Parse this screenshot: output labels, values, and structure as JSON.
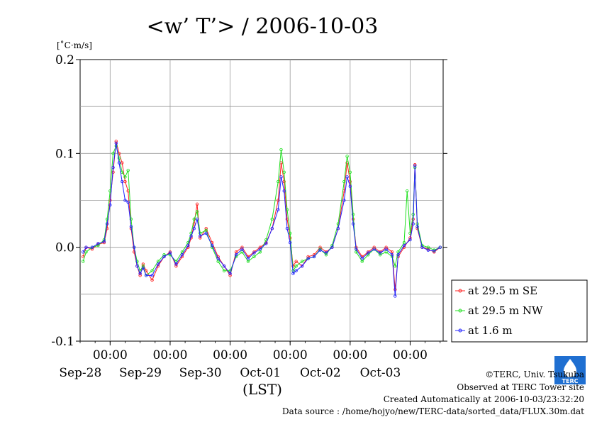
{
  "chart_data": {
    "type": "line",
    "title": "<w’ T’> / 2006-10-03",
    "unit_label": "[˚C·m/s]",
    "xlabel": "(LST)",
    "ylim": [
      -0.1,
      0.2
    ],
    "y_ticks": [
      "0.2",
      "0.1",
      "0.0",
      "-0.1"
    ],
    "x_range_days": [
      -0.5,
      5.55
    ],
    "x_day_ticks": [
      {
        "time": "00:00",
        "date": "Sep-28"
      },
      {
        "time": "00:00",
        "date": "Sep-29"
      },
      {
        "time": "00:00",
        "date": "Sep-30"
      },
      {
        "time": "00:00",
        "date": "Oct-01"
      },
      {
        "time": "00:00",
        "date": "Oct-02"
      },
      {
        "time": "00:00",
        "date": "Oct-03"
      }
    ],
    "grid": true,
    "legend_position": "right",
    "series": [
      {
        "name": "at 29.5 m SE",
        "color": "#ff2020",
        "points": [
          [
            -0.45,
            -0.01
          ],
          [
            -0.4,
            0.0
          ],
          [
            -0.3,
            -0.002
          ],
          [
            -0.2,
            0.003
          ],
          [
            -0.1,
            0.005
          ],
          [
            -0.05,
            0.02
          ],
          [
            0.0,
            0.05
          ],
          [
            0.05,
            0.08
          ],
          [
            0.1,
            0.113
          ],
          [
            0.15,
            0.1
          ],
          [
            0.2,
            0.09
          ],
          [
            0.25,
            0.07
          ],
          [
            0.3,
            0.06
          ],
          [
            0.35,
            0.02
          ],
          [
            0.4,
            -0.005
          ],
          [
            0.45,
            -0.02
          ],
          [
            0.5,
            -0.03
          ],
          [
            0.55,
            -0.018
          ],
          [
            0.6,
            -0.025
          ],
          [
            0.7,
            -0.035
          ],
          [
            0.8,
            -0.02
          ],
          [
            0.9,
            -0.01
          ],
          [
            1.0,
            -0.005
          ],
          [
            1.1,
            -0.02
          ],
          [
            1.2,
            -0.01
          ],
          [
            1.3,
            0.0
          ],
          [
            1.35,
            0.01
          ],
          [
            1.4,
            0.025
          ],
          [
            1.45,
            0.046
          ],
          [
            1.5,
            0.01
          ],
          [
            1.6,
            0.02
          ],
          [
            1.7,
            0.005
          ],
          [
            1.8,
            -0.01
          ],
          [
            1.9,
            -0.02
          ],
          [
            2.0,
            -0.03
          ],
          [
            2.1,
            -0.005
          ],
          [
            2.2,
            0.0
          ],
          [
            2.3,
            -0.01
          ],
          [
            2.4,
            -0.005
          ],
          [
            2.5,
            0.0
          ],
          [
            2.6,
            0.005
          ],
          [
            2.7,
            0.02
          ],
          [
            2.8,
            0.05
          ],
          [
            2.85,
            0.09
          ],
          [
            2.9,
            0.07
          ],
          [
            2.95,
            0.03
          ],
          [
            3.0,
            0.01
          ],
          [
            3.05,
            -0.02
          ],
          [
            3.1,
            -0.015
          ],
          [
            3.2,
            -0.02
          ],
          [
            3.3,
            -0.01
          ],
          [
            3.4,
            -0.008
          ],
          [
            3.5,
            0.0
          ],
          [
            3.6,
            -0.005
          ],
          [
            3.7,
            0.0
          ],
          [
            3.8,
            0.02
          ],
          [
            3.9,
            0.06
          ],
          [
            3.95,
            0.09
          ],
          [
            4.0,
            0.07
          ],
          [
            4.05,
            0.03
          ],
          [
            4.1,
            0.0
          ],
          [
            4.2,
            -0.01
          ],
          [
            4.3,
            -0.005
          ],
          [
            4.4,
            0.0
          ],
          [
            4.5,
            -0.005
          ],
          [
            4.6,
            0.0
          ],
          [
            4.7,
            -0.005
          ],
          [
            4.75,
            -0.045
          ],
          [
            4.8,
            -0.01
          ],
          [
            4.9,
            0.0
          ],
          [
            5.0,
            0.01
          ],
          [
            5.05,
            0.03
          ],
          [
            5.08,
            0.088
          ],
          [
            5.12,
            0.02
          ],
          [
            5.2,
            0.0
          ],
          [
            5.3,
            -0.002
          ],
          [
            5.4,
            -0.005
          ],
          [
            5.5,
            0.0
          ]
        ]
      },
      {
        "name": "at 29.5 m NW",
        "color": "#20e020",
        "points": [
          [
            -0.45,
            -0.015
          ],
          [
            -0.4,
            -0.005
          ],
          [
            -0.3,
            0.0
          ],
          [
            -0.2,
            0.002
          ],
          [
            -0.1,
            0.008
          ],
          [
            -0.05,
            0.03
          ],
          [
            0.0,
            0.06
          ],
          [
            0.05,
            0.1
          ],
          [
            0.1,
            0.108
          ],
          [
            0.15,
            0.095
          ],
          [
            0.2,
            0.08
          ],
          [
            0.25,
            0.075
          ],
          [
            0.3,
            0.082
          ],
          [
            0.35,
            0.03
          ],
          [
            0.4,
            0.0
          ],
          [
            0.45,
            -0.015
          ],
          [
            0.5,
            -0.025
          ],
          [
            0.55,
            -0.02
          ],
          [
            0.6,
            -0.03
          ],
          [
            0.7,
            -0.025
          ],
          [
            0.8,
            -0.015
          ],
          [
            0.9,
            -0.008
          ],
          [
            1.0,
            -0.008
          ],
          [
            1.1,
            -0.015
          ],
          [
            1.2,
            -0.005
          ],
          [
            1.3,
            0.005
          ],
          [
            1.35,
            0.015
          ],
          [
            1.4,
            0.03
          ],
          [
            1.45,
            0.038
          ],
          [
            1.5,
            0.015
          ],
          [
            1.6,
            0.018
          ],
          [
            1.7,
            0.0
          ],
          [
            1.8,
            -0.015
          ],
          [
            1.9,
            -0.025
          ],
          [
            2.0,
            -0.025
          ],
          [
            2.1,
            -0.01
          ],
          [
            2.2,
            -0.005
          ],
          [
            2.3,
            -0.015
          ],
          [
            2.4,
            -0.01
          ],
          [
            2.5,
            -0.005
          ],
          [
            2.6,
            0.008
          ],
          [
            2.7,
            0.03
          ],
          [
            2.8,
            0.07
          ],
          [
            2.85,
            0.104
          ],
          [
            2.9,
            0.08
          ],
          [
            2.95,
            0.04
          ],
          [
            3.0,
            0.015
          ],
          [
            3.05,
            -0.025
          ],
          [
            3.1,
            -0.02
          ],
          [
            3.2,
            -0.015
          ],
          [
            3.3,
            -0.012
          ],
          [
            3.4,
            -0.01
          ],
          [
            3.5,
            -0.002
          ],
          [
            3.6,
            -0.008
          ],
          [
            3.7,
            0.002
          ],
          [
            3.8,
            0.025
          ],
          [
            3.9,
            0.07
          ],
          [
            3.95,
            0.097
          ],
          [
            4.0,
            0.08
          ],
          [
            4.05,
            0.035
          ],
          [
            4.1,
            -0.005
          ],
          [
            4.2,
            -0.015
          ],
          [
            4.3,
            -0.008
          ],
          [
            4.4,
            -0.002
          ],
          [
            4.5,
            -0.008
          ],
          [
            4.6,
            -0.005
          ],
          [
            4.7,
            -0.01
          ],
          [
            4.75,
            -0.02
          ],
          [
            4.8,
            -0.005
          ],
          [
            4.9,
            0.005
          ],
          [
            4.95,
            0.06
          ],
          [
            5.0,
            0.015
          ],
          [
            5.05,
            0.035
          ],
          [
            5.08,
            0.085
          ],
          [
            5.12,
            0.025
          ],
          [
            5.2,
            0.002
          ],
          [
            5.3,
            0.0
          ],
          [
            5.4,
            -0.003
          ],
          [
            5.5,
            0.0
          ]
        ]
      },
      {
        "name": "at 1.6 m",
        "color": "#2020ff",
        "points": [
          [
            -0.45,
            -0.005
          ],
          [
            -0.4,
            0.0
          ],
          [
            -0.3,
            0.0
          ],
          [
            -0.2,
            0.004
          ],
          [
            -0.1,
            0.006
          ],
          [
            -0.05,
            0.025
          ],
          [
            0.0,
            0.045
          ],
          [
            0.05,
            0.085
          ],
          [
            0.1,
            0.111
          ],
          [
            0.15,
            0.09
          ],
          [
            0.2,
            0.07
          ],
          [
            0.25,
            0.05
          ],
          [
            0.3,
            0.048
          ],
          [
            0.35,
            0.022
          ],
          [
            0.4,
            0.0
          ],
          [
            0.45,
            -0.02
          ],
          [
            0.5,
            -0.028
          ],
          [
            0.55,
            -0.022
          ],
          [
            0.6,
            -0.03
          ],
          [
            0.7,
            -0.03
          ],
          [
            0.8,
            -0.018
          ],
          [
            0.9,
            -0.01
          ],
          [
            1.0,
            -0.006
          ],
          [
            1.1,
            -0.018
          ],
          [
            1.2,
            -0.008
          ],
          [
            1.3,
            0.002
          ],
          [
            1.35,
            0.012
          ],
          [
            1.4,
            0.02
          ],
          [
            1.45,
            0.03
          ],
          [
            1.5,
            0.012
          ],
          [
            1.6,
            0.015
          ],
          [
            1.7,
            0.002
          ],
          [
            1.8,
            -0.012
          ],
          [
            1.9,
            -0.02
          ],
          [
            2.0,
            -0.028
          ],
          [
            2.1,
            -0.008
          ],
          [
            2.2,
            -0.002
          ],
          [
            2.3,
            -0.012
          ],
          [
            2.4,
            -0.006
          ],
          [
            2.5,
            -0.002
          ],
          [
            2.6,
            0.004
          ],
          [
            2.7,
            0.02
          ],
          [
            2.8,
            0.04
          ],
          [
            2.85,
            0.075
          ],
          [
            2.9,
            0.06
          ],
          [
            2.95,
            0.02
          ],
          [
            3.0,
            0.005
          ],
          [
            3.05,
            -0.028
          ],
          [
            3.1,
            -0.025
          ],
          [
            3.2,
            -0.02
          ],
          [
            3.3,
            -0.012
          ],
          [
            3.4,
            -0.01
          ],
          [
            3.5,
            -0.003
          ],
          [
            3.6,
            -0.006
          ],
          [
            3.7,
            0.0
          ],
          [
            3.8,
            0.02
          ],
          [
            3.9,
            0.05
          ],
          [
            3.95,
            0.075
          ],
          [
            4.0,
            0.065
          ],
          [
            4.05,
            0.025
          ],
          [
            4.1,
            -0.002
          ],
          [
            4.2,
            -0.012
          ],
          [
            4.3,
            -0.006
          ],
          [
            4.4,
            -0.002
          ],
          [
            4.5,
            -0.006
          ],
          [
            4.6,
            -0.002
          ],
          [
            4.7,
            -0.008
          ],
          [
            4.75,
            -0.052
          ],
          [
            4.8,
            -0.008
          ],
          [
            4.9,
            0.002
          ],
          [
            5.0,
            0.008
          ],
          [
            5.05,
            0.025
          ],
          [
            5.08,
            0.087
          ],
          [
            5.12,
            0.022
          ],
          [
            5.2,
            0.0
          ],
          [
            5.3,
            -0.003
          ],
          [
            5.4,
            -0.004
          ],
          [
            5.5,
            0.0
          ]
        ]
      }
    ]
  },
  "credits": {
    "copyright": "©TERC, Univ. Tsukuba",
    "site": "Observed at TERC Tower site",
    "created": "Created Automatically at 2006-10-03/23:32:20",
    "source": "Data source : /home/hojyo/new/TERC-data/sorted_data/FLUX.30m.dat",
    "logo_text": "TERC"
  }
}
